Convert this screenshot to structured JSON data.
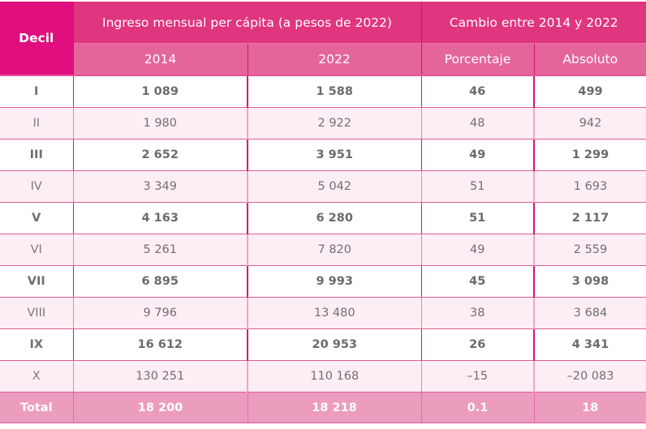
{
  "table": {
    "header": {
      "decil_label": "Decil",
      "group_income": "Ingreso mensual per cápita (a pesos de 2022)",
      "group_change": "Cambio entre 2014 y 2022",
      "col_2014": "2014",
      "col_2022": "2022",
      "col_pct": "Porcentaje",
      "col_abs": "Absoluto"
    },
    "rows": [
      {
        "decil": "I",
        "y2014": "1 089",
        "y2022": "1 588",
        "pct": "46",
        "abs": "499"
      },
      {
        "decil": "II",
        "y2014": "1 980",
        "y2022": "2 922",
        "pct": "48",
        "abs": "942"
      },
      {
        "decil": "III",
        "y2014": "2 652",
        "y2022": "3 951",
        "pct": "49",
        "abs": "1 299"
      },
      {
        "decil": "IV",
        "y2014": "3 349",
        "y2022": "5 042",
        "pct": "51",
        "abs": "1 693"
      },
      {
        "decil": "V",
        "y2014": "4 163",
        "y2022": "6 280",
        "pct": "51",
        "abs": "2 117"
      },
      {
        "decil": "VI",
        "y2014": "5 261",
        "y2022": "7 820",
        "pct": "49",
        "abs": "2 559"
      },
      {
        "decil": "VII",
        "y2014": "6 895",
        "y2022": "9 993",
        "pct": "45",
        "abs": "3 098"
      },
      {
        "decil": "VIII",
        "y2014": "9 796",
        "y2022": "13 480",
        "pct": "38",
        "abs": "3 684"
      },
      {
        "decil": "IX",
        "y2014": "16 612",
        "y2022": "20 953",
        "pct": "26",
        "abs": "4 341"
      },
      {
        "decil": "X",
        "y2014": "130 251",
        "y2022": "110 168",
        "pct": "–15",
        "abs": "–20 083"
      }
    ],
    "total": {
      "label": "Total",
      "y2014": "18 200",
      "y2022": "18 218",
      "pct": "0.1",
      "abs": "18"
    }
  },
  "colors": {
    "decil_header": "#e00e7e",
    "group_header": "#e0357f",
    "sub_header": "#e4659a",
    "row_alt": "#fdeef5",
    "total_row": "#ec9cbd",
    "border": "#d7137a"
  }
}
